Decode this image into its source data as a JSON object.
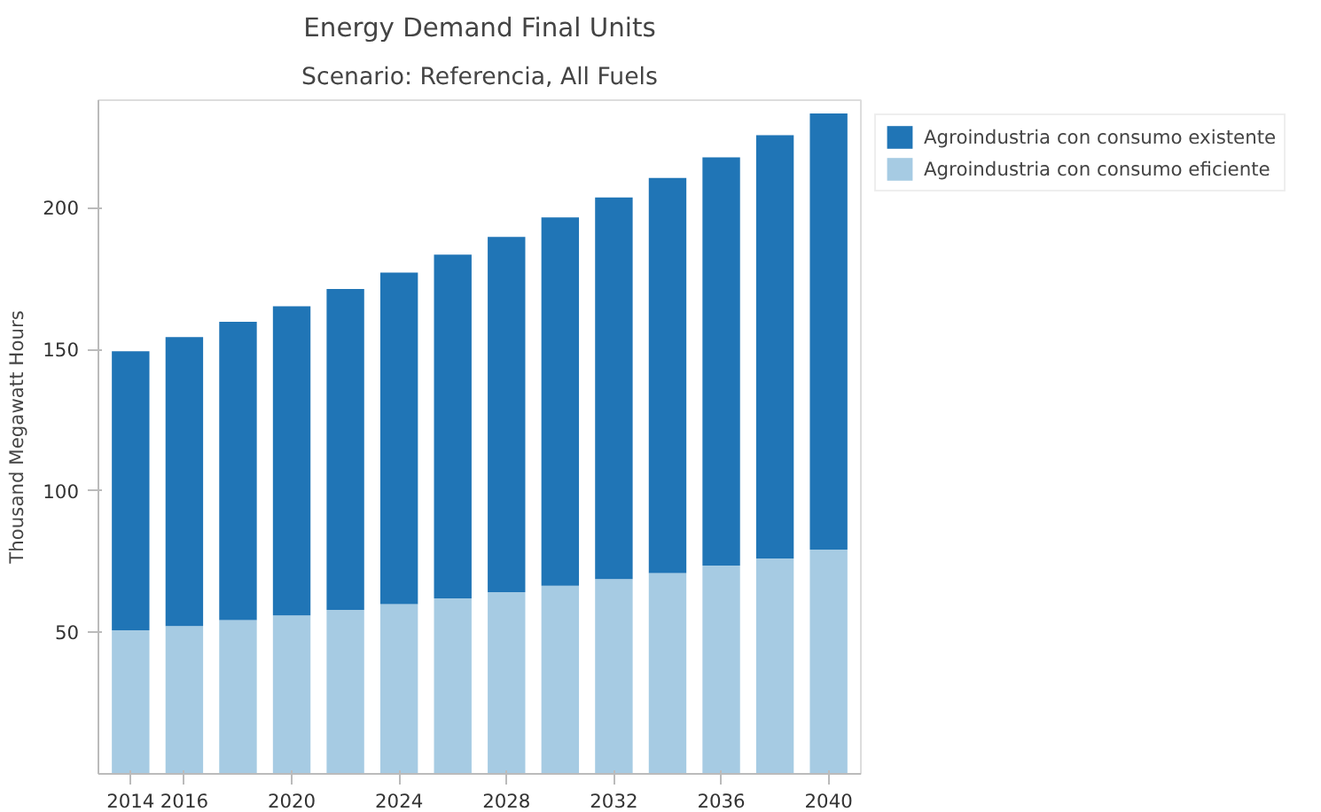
{
  "chart_data": {
    "type": "bar",
    "title": "Energy Demand Final Units",
    "subtitle": "Scenario: Referencia, All Fuels",
    "ylabel": "Thousand Megawatt Hours",
    "stacked": true,
    "legend": "top right",
    "grid": false,
    "x": [
      2014,
      2016,
      2018,
      2020,
      2022,
      2024,
      2026,
      2028,
      2030,
      2032,
      2034,
      2036,
      2038,
      2040
    ],
    "xlim": [
      2012.8,
      2041.2
    ],
    "xticks": [
      2014,
      2016,
      2020,
      2024,
      2028,
      2032,
      2036,
      2040
    ],
    "ylim": [
      0,
      238
    ],
    "yticks": [
      50,
      100,
      150,
      200
    ],
    "series": [
      {
        "name": "Agroindustria con consumo eficiente",
        "color": "#a6cbe3",
        "values": [
          50.7,
          52.2,
          54.3,
          56.0,
          57.9,
          60.0,
          62.0,
          64.2,
          66.5,
          68.8,
          70.9,
          73.6,
          76.1,
          79.2
        ]
      },
      {
        "name": "Agroindustria con consumo existente",
        "color": "#2075b6",
        "values": [
          98.6,
          102.1,
          105.4,
          109.2,
          113.4,
          117.1,
          121.4,
          125.5,
          130.1,
          134.8,
          139.6,
          144.2,
          149.5,
          154.1
        ]
      }
    ]
  }
}
